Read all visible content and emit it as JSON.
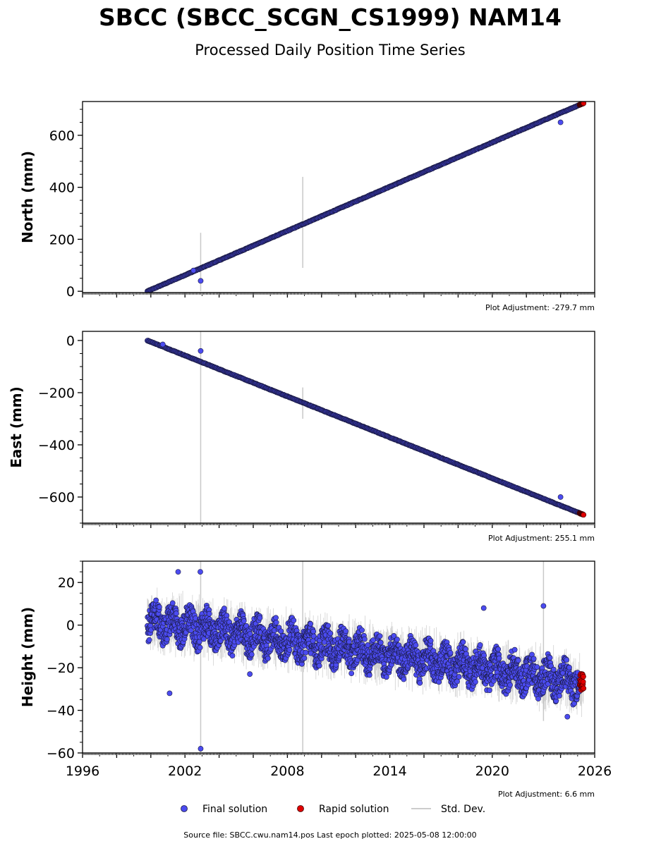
{
  "title": "SBCC (SBCC_SCGN_CS1999) NAM14",
  "subtitle": "Processed Daily Position Time Series",
  "source_note": "Source file: SBCC.cwu.nam14.pos  Last epoch plotted: 2025-05-08 12:00:00",
  "legend": {
    "final_label": "Final solution",
    "rapid_label": "Rapid solution",
    "stddev_label": "Std. Dev.",
    "placement": "bottom-center"
  },
  "colors": {
    "final": "#4b4bf0",
    "final_edge": "#1a1a40",
    "rapid": "#e00000",
    "rapid_edge": "#400000",
    "stddev": "#999999",
    "axis": "#000000"
  },
  "chart_data": [
    {
      "type": "scatter",
      "ylabel": "North (mm)",
      "adjustment": "Plot Adjustment: -279.7 mm",
      "xlim": [
        1996,
        2026
      ],
      "ylim": [
        -5,
        730
      ],
      "yticks": [
        0,
        200,
        400,
        600
      ],
      "ytick_labels": [
        "0",
        "200",
        "400",
        "600"
      ],
      "trend": {
        "x": [
          1999.8,
          2025.35
        ],
        "y": [
          0,
          724
        ]
      },
      "noise_amplitude": 2,
      "stddev_bars": [
        {
          "x": 2002.92,
          "y_low": 0,
          "y_high": 225
        },
        {
          "x": 2008.9,
          "y_low": 90,
          "y_high": 440
        }
      ],
      "outliers": [
        {
          "x": 2002.92,
          "y": 40
        },
        {
          "x": 2002.5,
          "y": 80
        },
        {
          "x": 2024.0,
          "y": 650
        }
      ],
      "rapid_range": [
        2025.12,
        2025.35
      ]
    },
    {
      "type": "scatter",
      "ylabel": "East (mm)",
      "adjustment": "Plot Adjustment: 255.1 mm",
      "xlim": [
        1996,
        2026
      ],
      "ylim": [
        -700,
        35
      ],
      "yticks": [
        0,
        -200,
        -400,
        -600
      ],
      "ytick_labels": [
        "0",
        "−200",
        "−400",
        "−600"
      ],
      "trend": {
        "x": [
          1999.8,
          2025.35
        ],
        "y": [
          0,
          -668
        ]
      },
      "noise_amplitude": 2,
      "stddev_bars": [
        {
          "x": 2002.92,
          "y_low": -700,
          "y_high": 35
        },
        {
          "x": 2008.9,
          "y_low": -300,
          "y_high": -180
        }
      ],
      "outliers": [
        {
          "x": 2002.92,
          "y": -40
        },
        {
          "x": 2000.7,
          "y": -15
        },
        {
          "x": 2024.0,
          "y": -600
        }
      ],
      "rapid_range": [
        2025.12,
        2025.35
      ]
    },
    {
      "type": "scatter",
      "ylabel": "Height (mm)",
      "adjustment": "Plot Adjustment: 6.6 mm",
      "xlim": [
        1996,
        2026
      ],
      "ylim": [
        -60,
        30
      ],
      "yticks": [
        20,
        0,
        -20,
        -40,
        -60
      ],
      "ytick_labels": [
        "20",
        "0",
        "−20",
        "−40",
        "−60"
      ],
      "xticks": [
        1996,
        2002,
        2008,
        2014,
        2020,
        2026
      ],
      "xtick_labels": [
        "1996",
        "2002",
        "2008",
        "2014",
        "2020",
        "2026"
      ],
      "trend": {
        "x": [
          1999.8,
          2025.35
        ],
        "y": [
          2,
          -27
        ]
      },
      "noise_amplitude": 8,
      "stddev_bars": [
        {
          "x": 2002.92,
          "y_low": -60,
          "y_high": 30
        },
        {
          "x": 2008.9,
          "y_low": -60,
          "y_high": 30
        },
        {
          "x": 2023.0,
          "y_low": -45,
          "y_high": 30
        }
      ],
      "outliers": [
        {
          "x": 2002.92,
          "y": -58
        },
        {
          "x": 2001.1,
          "y": -32
        },
        {
          "x": 2005.8,
          "y": -23
        },
        {
          "x": 2002.9,
          "y": 25
        },
        {
          "x": 2001.6,
          "y": 25
        },
        {
          "x": 2019.5,
          "y": 8
        },
        {
          "x": 2023.0,
          "y": 9
        },
        {
          "x": 2024.4,
          "y": -43
        }
      ],
      "rapid_range": [
        2025.12,
        2025.35
      ]
    }
  ]
}
